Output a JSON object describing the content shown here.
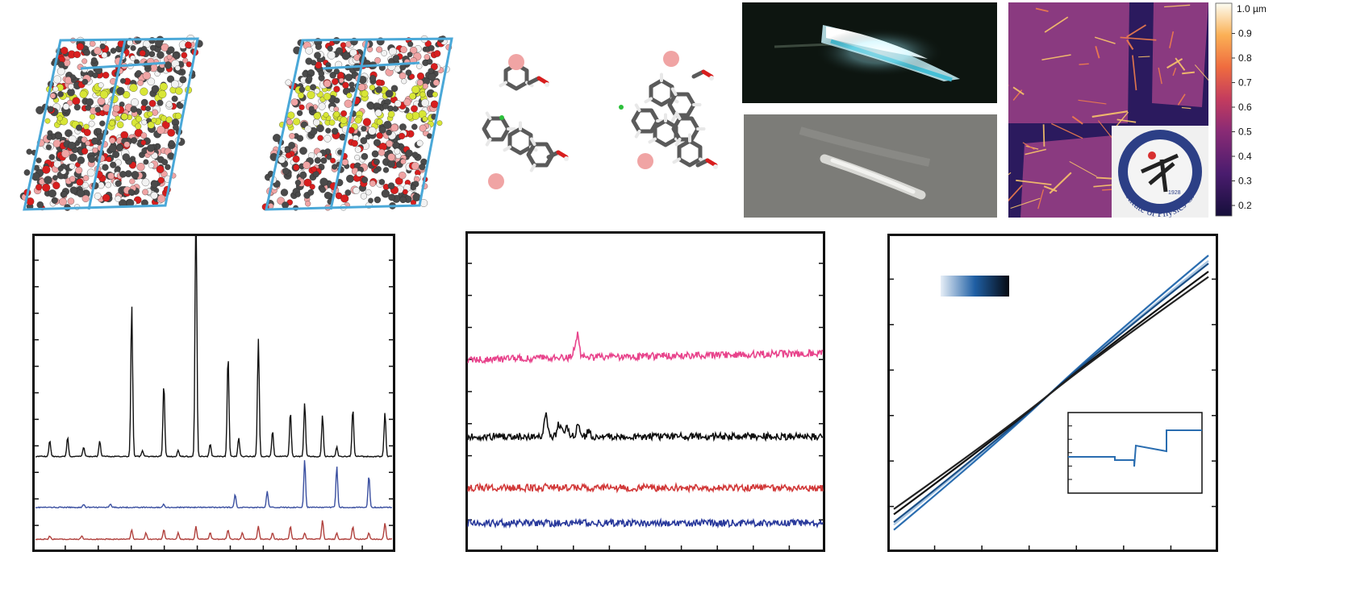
{
  "colorbar": {
    "max_label": "1.0 µm",
    "ticks": [
      "0.9",
      "0.8",
      "0.7",
      "0.6",
      "0.5",
      "0.4",
      "0.3",
      "0.2"
    ]
  },
  "logo": {
    "text": "Institute of Physics CAS",
    "year": "1928"
  },
  "colors": {
    "cell_frame": "#4aa8d8",
    "carbon": "#4a4a4a",
    "oxygen": "#d81e1e",
    "hydrogen": "#f2f2f2",
    "potassium": "#f0a4a4",
    "highlight": "#d8e636",
    "chloride": "#2bbf3a",
    "xrd_black": "#111111",
    "xrd_blue": "#3a4fa0",
    "xrd_red": "#b0403c",
    "raman_pink": "#e8448c",
    "raman_black": "#111111",
    "raman_red": "#d23a3a",
    "raman_blue": "#2a3a9c",
    "iv_blue": "#2a6db0",
    "iv_black": "#111111"
  },
  "chart_data": [
    {
      "type": "line",
      "panel": "xrd",
      "series": [
        {
          "color": "#111111",
          "offset": 0.3,
          "peaks": [
            [
              0.04,
              0.05
            ],
            [
              0.09,
              0.06
            ],
            [
              0.135,
              0.03
            ],
            [
              0.18,
              0.05
            ],
            [
              0.27,
              0.48
            ],
            [
              0.3,
              0.02
            ],
            [
              0.36,
              0.23
            ],
            [
              0.4,
              0.02
            ],
            [
              0.45,
              0.82
            ],
            [
              0.49,
              0.04
            ],
            [
              0.54,
              0.32
            ],
            [
              0.57,
              0.06
            ],
            [
              0.625,
              0.37
            ],
            [
              0.665,
              0.08
            ],
            [
              0.715,
              0.14
            ],
            [
              0.755,
              0.17
            ],
            [
              0.805,
              0.13
            ],
            [
              0.845,
              0.03
            ],
            [
              0.89,
              0.15
            ],
            [
              0.98,
              0.14
            ]
          ]
        },
        {
          "color": "#3a4fa0",
          "offset": 0.14,
          "peaks": [
            [
              0.135,
              0.01
            ],
            [
              0.21,
              0.01
            ],
            [
              0.36,
              0.01
            ],
            [
              0.56,
              0.04
            ],
            [
              0.65,
              0.05
            ],
            [
              0.755,
              0.15
            ],
            [
              0.845,
              0.13
            ],
            [
              0.935,
              0.1
            ]
          ]
        },
        {
          "color": "#b0403c",
          "offset": 0.04,
          "peaks": [
            [
              0.04,
              0.01
            ],
            [
              0.13,
              0.01
            ],
            [
              0.27,
              0.03
            ],
            [
              0.31,
              0.02
            ],
            [
              0.36,
              0.03
            ],
            [
              0.4,
              0.02
            ],
            [
              0.45,
              0.04
            ],
            [
              0.49,
              0.02
            ],
            [
              0.54,
              0.03
            ],
            [
              0.58,
              0.02
            ],
            [
              0.625,
              0.04
            ],
            [
              0.665,
              0.02
            ],
            [
              0.715,
              0.04
            ],
            [
              0.755,
              0.02
            ],
            [
              0.805,
              0.06
            ],
            [
              0.845,
              0.02
            ],
            [
              0.89,
              0.04
            ],
            [
              0.935,
              0.02
            ],
            [
              0.98,
              0.05
            ]
          ]
        }
      ]
    },
    {
      "type": "line",
      "panel": "raman",
      "series": [
        {
          "color": "#e8448c",
          "offset": 0.6,
          "peaks": [
            [
              0.31,
              0.07
            ],
            [
              0.3,
              0.03
            ]
          ]
        },
        {
          "color": "#111111",
          "offset": 0.36,
          "peaks": [
            [
              0.22,
              0.08
            ],
            [
              0.255,
              0.035
            ],
            [
              0.265,
              0.035
            ],
            [
              0.28,
              0.03
            ],
            [
              0.31,
              0.04
            ],
            [
              0.34,
              0.02
            ]
          ]
        },
        {
          "color": "#d23a3a",
          "offset": 0.2,
          "peaks": [
            [
              0.22,
              0.015
            ]
          ]
        },
        {
          "color": "#2a3a9c",
          "offset": 0.09,
          "peaks": []
        }
      ]
    },
    {
      "type": "line",
      "panel": "iv",
      "series": [
        {
          "color": "#a8c6e3",
          "slope": 1.0
        },
        {
          "color": "#2a6db0",
          "slope": 1.04
        },
        {
          "color": "#1b4f86",
          "slope": 0.98
        },
        {
          "color": "#111111",
          "slope": 0.92
        },
        {
          "color": "#222222",
          "slope": 0.88
        }
      ],
      "inset": {
        "color": "#2a6db0",
        "levels": [
          0.45,
          0.42,
          0.58
        ]
      }
    }
  ]
}
